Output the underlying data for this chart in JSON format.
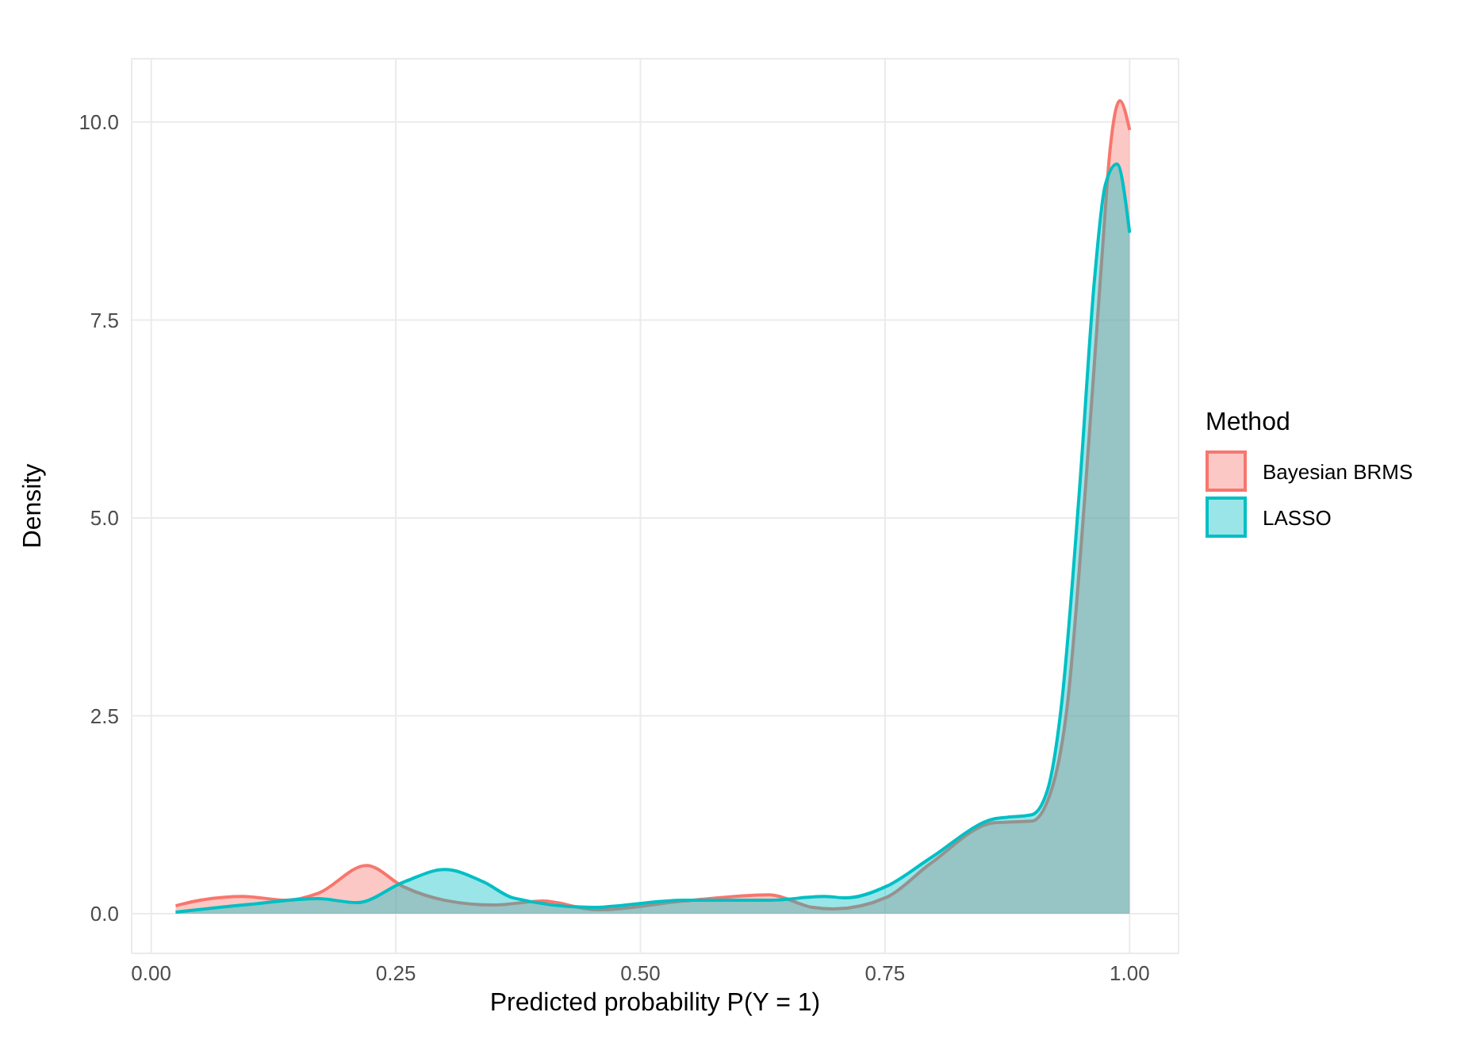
{
  "chart_data": {
    "type": "area",
    "xlabel": "Predicted probability P(Y = 1)",
    "ylabel": "Density",
    "legend_title": "Method",
    "legend": "right",
    "grid": true,
    "xlim": [
      -0.02,
      1.05
    ],
    "ylim": [
      -0.5,
      10.8
    ],
    "xticks": [
      {
        "value": 0,
        "label": "0.00"
      },
      0.25,
      {
        "value": 0.5,
        "label": "0.50"
      },
      0.75,
      {
        "value": 1,
        "label": "1.00"
      }
    ],
    "yticks": [
      {
        "value": 0,
        "label": "0.0"
      },
      2.5,
      {
        "value": 5,
        "label": "5.0"
      },
      7.5,
      {
        "value": 10,
        "label": "10.0"
      }
    ],
    "series": [
      {
        "name": "Bayesian BRMS",
        "color": "#f8766d",
        "x": [
          0.025,
          0.031,
          0.094,
          0.138,
          0.171,
          0.22,
          0.258,
          0.3,
          0.35,
          0.4,
          0.456,
          0.544,
          0.632,
          0.676,
          0.697,
          0.752,
          0.796,
          0.862,
          0.9,
          0.922,
          0.936,
          0.955,
          0.972,
          0.98,
          0.99,
          1.0
        ],
        "values": [
          0.1,
          0.12,
          0.22,
          0.17,
          0.26,
          0.61,
          0.34,
          0.17,
          0.11,
          0.16,
          0.05,
          0.16,
          0.24,
          0.08,
          0.06,
          0.21,
          0.63,
          1.15,
          1.17,
          1.64,
          2.6,
          5.4,
          8.35,
          9.65,
          10.27,
          9.9
        ]
      },
      {
        "name": "LASSO",
        "color": "#00bfc4",
        "x": [
          0.025,
          0.094,
          0.171,
          0.21,
          0.258,
          0.3,
          0.34,
          0.37,
          0.45,
          0.544,
          0.632,
          0.688,
          0.71,
          0.752,
          0.796,
          0.862,
          0.9,
          0.916,
          0.93,
          0.949,
          0.964,
          0.975,
          0.987,
          1.0
        ],
        "values": [
          0.02,
          0.11,
          0.19,
          0.14,
          0.4,
          0.56,
          0.4,
          0.2,
          0.08,
          0.17,
          0.17,
          0.22,
          0.2,
          0.35,
          0.7,
          1.2,
          1.25,
          1.56,
          2.6,
          5.4,
          8.0,
          9.2,
          9.47,
          8.6
        ]
      }
    ]
  }
}
